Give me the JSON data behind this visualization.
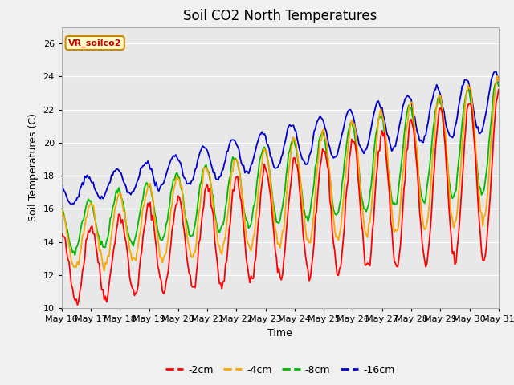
{
  "title": "Soil CO2 North Temperatures",
  "xlabel": "Time",
  "ylabel": "Soil Temperatures (C)",
  "legend_label": "VR_soilco2",
  "ylim": [
    10,
    27
  ],
  "yticks": [
    10,
    12,
    14,
    16,
    18,
    20,
    22,
    24,
    26
  ],
  "series_labels": [
    "-2cm",
    "-4cm",
    "-8cm",
    "-16cm"
  ],
  "series_colors": [
    "#ff0000",
    "#ffa500",
    "#00bb00",
    "#0000cc"
  ],
  "x_tick_labels": [
    "May 16",
    "May 17",
    "May 18",
    "May 19",
    "May 20",
    "May 21",
    "May 22",
    "May 23",
    "May 24",
    "May 25",
    "May 26",
    "May 27",
    "May 28",
    "May 29",
    "May 30",
    "May 31"
  ],
  "fig_facecolor": "#f0f0f0",
  "ax_facecolor": "#e8e8e8",
  "title_fontsize": 12,
  "axis_label_fontsize": 9,
  "tick_fontsize": 8,
  "linewidth": 1.3,
  "n_days": 15,
  "pts_per_day": 24
}
